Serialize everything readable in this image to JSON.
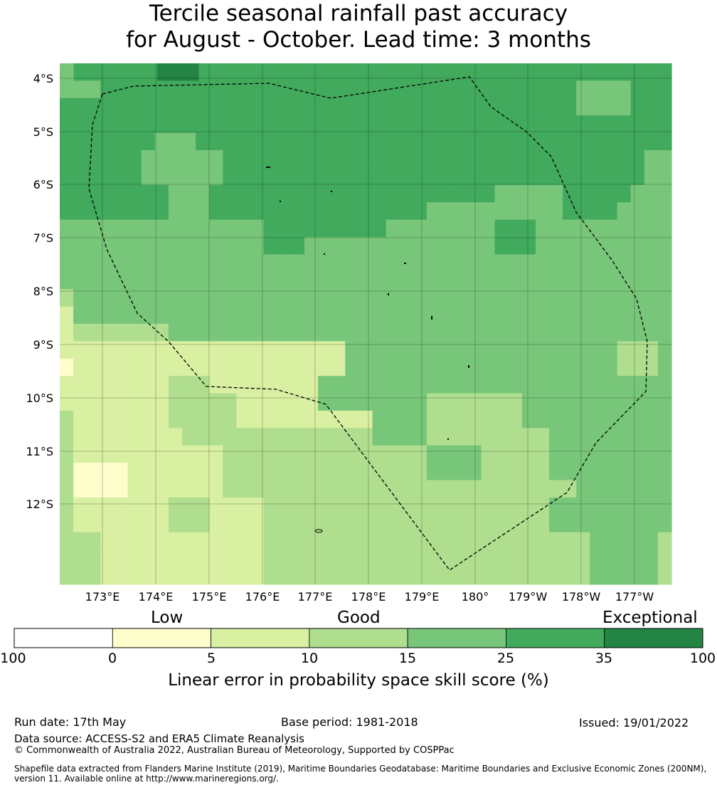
{
  "title": {
    "line1": "Tercile seasonal rainfall past accuracy",
    "line2": "for August - October. Lead time: 3 months"
  },
  "axes": {
    "lat_ticks": [
      "4°S",
      "5°S",
      "6°S",
      "7°S",
      "8°S",
      "9°S",
      "10°S",
      "11°S",
      "12°S"
    ],
    "lon_ticks": [
      "173°E",
      "174°E",
      "175°E",
      "176°E",
      "177°E",
      "178°E",
      "179°E",
      "180°",
      "179°W",
      "178°W",
      "177°W"
    ]
  },
  "colorbar": {
    "categories": [
      "Low",
      "Good",
      "Exceptional"
    ],
    "ticks": [
      "-100",
      "0",
      "5",
      "10",
      "15",
      "25",
      "35",
      "100"
    ],
    "colors": [
      "#ffffff",
      "#fefecc",
      "#d9efa2",
      "#aede8e",
      "#78c67a",
      "#41aa5d",
      "#238443"
    ],
    "label": "Linear error in probability space skill score (%)"
  },
  "footer": {
    "run_date": "Run date: 17th May",
    "base_period": "Base period: 1981-2018",
    "issued": "Issued: 19/01/2022",
    "data_source": "Data source: ACCESS-S2 and ERA5 Climate Reanalysis",
    "copyright": "© Commonwealth of Australia 2022, Australian Bureau of Meteorology, Supported by COSPPac",
    "shapefile_line1": "Shapefile data extracted from Flanders Marine Institute (2019), Maritime Boundaries Geodatabase: Maritime Boundaries and Exclusive Economic Zones (200NM),",
    "shapefile_line2": "version 11. Available online at http://www.marineregions.org/."
  },
  "map_grid": {
    "legend_level_codes": "1=0-5, 2=5-10, 3=10-15, 4=15-25, 5=25-35, 6=35-100",
    "rows": [
      "45555556665555555555555555555555555555555555",
      "444555555555555555555555555555555555554444555",
      "555555555555555555555555555555555555554444555",
      "555555555555555555555555555555555555555555555",
      "555555544455555555555555555555555555555555555",
      "555555444444555555555555555555555555555555544",
      "555555444444555555555555555555555555555555544",
      "555555554445555555555555555555554444455555444",
      "555555554445555555555555555444444444455554444",
      "444444444444444555555555444444445554444444444",
      "444444444444444555444444444444445554444444444",
      "444444444444444444444444444444444444444444444",
      "444444444444444444444444444444444444444444444",
      "344444444444444444444444444444444444444444444",
      "244444444444444444444444444444444444444444444",
      "233333334444444444444444444444444444444444444",
      "222222222222222222222444444444444444444443334",
      "122222222222222222222444444444444444444443334",
      "222222223332222222244444444444444444444444444",
      "222222223333322222244444444333333344444444444",
      "322222223333322222222224444333333344444444444",
      "322222222333333333333334444333333333444444444",
      "322222222222333333333333333444433333444444444",
      "311112222222333333333333333444433333444444444",
      "311112222222333333333333333333333333334444444",
      "322222223332222333333333333333333333444444444",
      "322222223332222333333333333333333333444444444",
      "333222222222222333333333333333333333333444443",
      "333222222222222333333333333333333333333444443",
      "333222222222222333333333333333333333333444443"
    ]
  }
}
